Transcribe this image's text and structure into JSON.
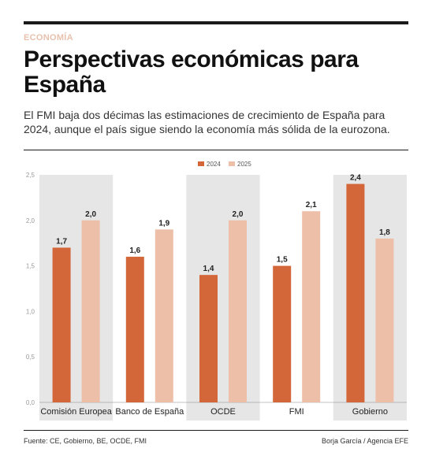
{
  "kicker": "ECONOMÍA",
  "title": "Perspectivas económicas para España",
  "subtitle": "El FMI baja dos décimas las estimaciones de crecimiento de España para 2024, aunque el país sigue siendo la economía más sólida de la eurozona.",
  "source": "Fuente: CE, Gobierno, BE, OCDE, FMI",
  "credit": "Borja García / Agencia EFE",
  "colors": {
    "series_2024": "#d4673a",
    "series_2025": "#eebfa8",
    "band": "#e6e6e6"
  },
  "chart_data": {
    "type": "bar",
    "categories": [
      "Comisión Europea",
      "Banco de España",
      "OCDE",
      "FMI",
      "Gobierno"
    ],
    "series": [
      {
        "name": "2024",
        "values": [
          1.7,
          1.6,
          1.4,
          1.5,
          2.4
        ]
      },
      {
        "name": "2025",
        "values": [
          2.0,
          1.9,
          2.0,
          2.1,
          1.8
        ]
      }
    ],
    "data_labels": [
      [
        "1,7",
        "1,6",
        "1,4",
        "1,5",
        "2,4"
      ],
      [
        "2,0",
        "1,9",
        "2,0",
        "2,1",
        "1,8"
      ]
    ],
    "yticks": [
      0,
      0.5,
      1,
      1.5,
      2,
      2.5
    ],
    "ytick_labels": [
      "0,0",
      "0,5",
      "1,0",
      "1,5",
      "2,0",
      "2,5"
    ],
    "ylim": [
      0,
      2.5
    ],
    "legend_position": "top-center",
    "shaded_bands": [
      true,
      false,
      true,
      false,
      true
    ],
    "grid": false
  }
}
